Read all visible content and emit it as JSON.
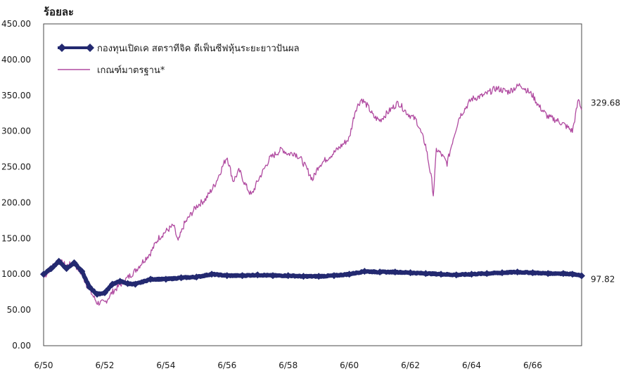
{
  "chart_data": {
    "type": "line",
    "ylabel": "ร้อยละ",
    "xlabel": "",
    "ylim": [
      0,
      450
    ],
    "y_ticks": [
      "0.00",
      "50.00",
      "100.00",
      "150.00",
      "200.00",
      "250.00",
      "300.00",
      "350.00",
      "400.00",
      "450.00"
    ],
    "x_ticks": [
      "6/50",
      "6/52",
      "6/54",
      "6/56",
      "6/58",
      "6/60",
      "6/62",
      "6/64",
      "6/66"
    ],
    "x_range": [
      0,
      17.6
    ],
    "legend_position": "top-left",
    "grid": false,
    "series": [
      {
        "name": "กองทุนเปิดเค สตราทีจิค ดีเฟ็นซีฟหุ้นระยะยาวปันผล",
        "color": "#232970",
        "marker": "diamond",
        "end_label": "97.82",
        "x": [
          0,
          0.25,
          0.5,
          0.75,
          1.0,
          1.25,
          1.5,
          1.75,
          2.0,
          2.25,
          2.5,
          2.75,
          3.0,
          3.5,
          4.0,
          4.5,
          5.0,
          5.5,
          6.0,
          6.5,
          7.0,
          7.5,
          8.0,
          8.5,
          9.0,
          9.5,
          10.0,
          10.5,
          11.0,
          11.5,
          12.0,
          12.5,
          13.0,
          13.5,
          14.0,
          14.5,
          15.0,
          15.5,
          16.0,
          16.5,
          17.0,
          17.3,
          17.6
        ],
        "y": [
          100,
          108,
          118,
          108,
          116,
          104,
          82,
          72,
          74,
          86,
          90,
          87,
          86,
          93,
          93,
          95,
          96,
          100,
          98,
          98,
          99,
          98,
          98,
          97,
          97,
          98,
          100,
          104,
          103,
          103,
          102,
          101,
          100,
          99,
          100,
          101,
          102,
          103,
          102,
          101,
          101,
          100,
          97.82
        ]
      },
      {
        "name": "เกณฑ์มาตรฐาน*",
        "color": "#b04aa0",
        "marker": "none",
        "end_label": "329.68",
        "x": [
          0,
          0.25,
          0.5,
          0.75,
          1.0,
          1.25,
          1.5,
          1.75,
          2.0,
          2.25,
          2.5,
          2.75,
          3.0,
          3.25,
          3.5,
          3.75,
          4.0,
          4.25,
          4.4,
          4.6,
          5.0,
          5.3,
          5.6,
          5.8,
          6.0,
          6.2,
          6.4,
          6.6,
          6.8,
          7.0,
          7.4,
          7.8,
          8.0,
          8.2,
          8.4,
          8.6,
          8.8,
          9.0,
          9.5,
          10.0,
          10.2,
          10.4,
          10.6,
          10.8,
          11.0,
          11.3,
          11.6,
          11.9,
          12.2,
          12.5,
          12.7,
          12.75,
          12.85,
          13.0,
          13.2,
          13.4,
          13.6,
          14.0,
          14.4,
          14.8,
          15.2,
          15.6,
          16.0,
          16.2,
          16.5,
          16.8,
          17.0,
          17.3,
          17.5,
          17.6
        ],
        "y": [
          95,
          110,
          118,
          112,
          115,
          100,
          78,
          60,
          60,
          75,
          85,
          95,
          105,
          118,
          130,
          150,
          160,
          168,
          145,
          170,
          195,
          205,
          225,
          245,
          265,
          230,
          245,
          225,
          210,
          230,
          262,
          275,
          268,
          270,
          262,
          248,
          232,
          252,
          270,
          290,
          330,
          345,
          335,
          320,
          315,
          328,
          340,
          325,
          315,
          280,
          230,
          210,
          275,
          268,
          255,
          290,
          320,
          345,
          350,
          360,
          355,
          365,
          350,
          335,
          320,
          315,
          310,
          300,
          345,
          329.68
        ]
      }
    ]
  }
}
